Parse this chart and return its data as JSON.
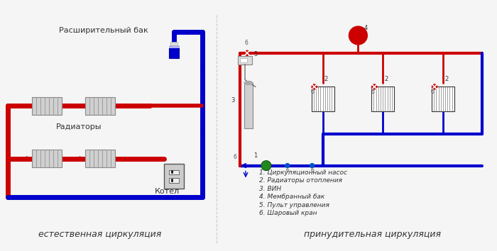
{
  "bg_color": "#f5f5f5",
  "left_label": "естественная циркуляция",
  "right_label": "принудительная циркуляция",
  "red_color": "#cc0000",
  "blue_color": "#0000cc",
  "blue_light": "#3333cc",
  "pipe_lw": 5,
  "rad_color": "#d0d0d0",
  "rad_edge": "#888888",
  "boiler_color": "#cccccc",
  "boiler_edge": "#888888",
  "tank_color": "#1a1aff",
  "tank_edge": "#0000aa",
  "legend_items": [
    "1. Циркуляционный насос",
    "2. Радиаторы отопления",
    "3. ВИН",
    "4. Мембранный бак",
    "5. Пульт управления",
    "6. Шаровый кран"
  ],
  "label_rasshir": "Расширительный бак",
  "label_radiatory": "Радиаторы",
  "label_kotel": "Котел",
  "font_size_labels": 8,
  "font_size_caption": 9,
  "font_size_legend": 6.5
}
